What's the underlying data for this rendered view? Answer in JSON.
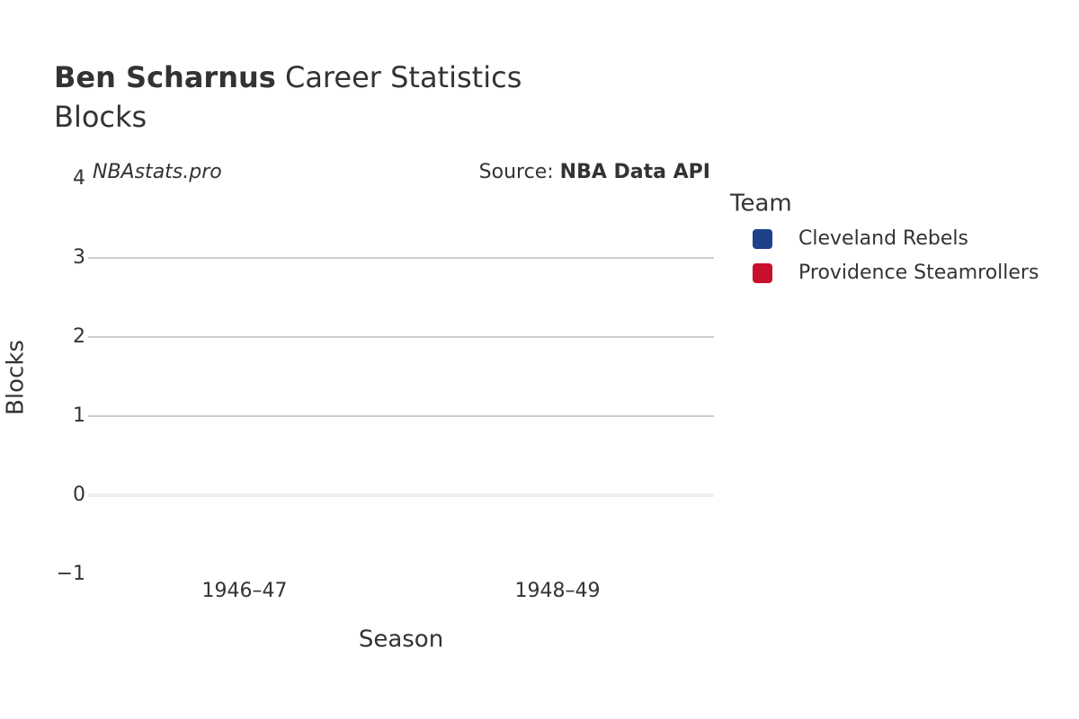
{
  "chart_data": {
    "type": "bar",
    "title_bold": "Ben Scharnus",
    "title": "Career Statistics",
    "subtitle": "Blocks",
    "annotations": {
      "left": "NBAstats.pro",
      "source_prefix": "Source:",
      "source": "NBA Data API"
    },
    "x_label": "Season",
    "y_label": "Blocks",
    "categories": [
      "1946–47",
      "1948–49"
    ],
    "series": [
      {
        "name": "Cleveland Rebels",
        "color": "#1d428a",
        "values": [
          0,
          null
        ]
      },
      {
        "name": "Providence Steamrollers",
        "color": "#c8102e",
        "values": [
          null,
          0
        ]
      }
    ],
    "legend_title": "Team",
    "legend_position": "right",
    "ylim": [
      -1,
      4
    ],
    "yticks": [
      {
        "value": -1,
        "label": "−1"
      },
      0,
      1,
      2,
      3,
      4
    ],
    "grid": true
  }
}
